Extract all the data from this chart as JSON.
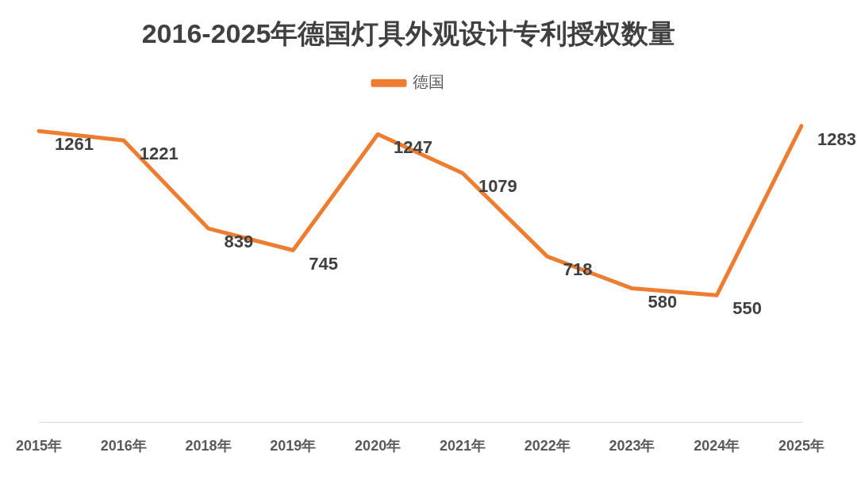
{
  "chart_data": {
    "type": "line",
    "title": "2016-2025年德国灯具外观设计专利授权数量",
    "categories": [
      "2015年",
      "2016年",
      "2018年",
      "2019年",
      "2020年",
      "2021年",
      "2022年",
      "2023年",
      "2024年",
      "2025年"
    ],
    "series": [
      {
        "name": "德国",
        "color": "#ed7d31",
        "values": [
          1261,
          1221,
          839,
          745,
          1247,
          1079,
          718,
          580,
          550,
          1283
        ]
      }
    ],
    "tick_labels": "x",
    "data_labels": true,
    "legend": "top",
    "grid": false,
    "marker": "none",
    "line_style": "solid"
  }
}
